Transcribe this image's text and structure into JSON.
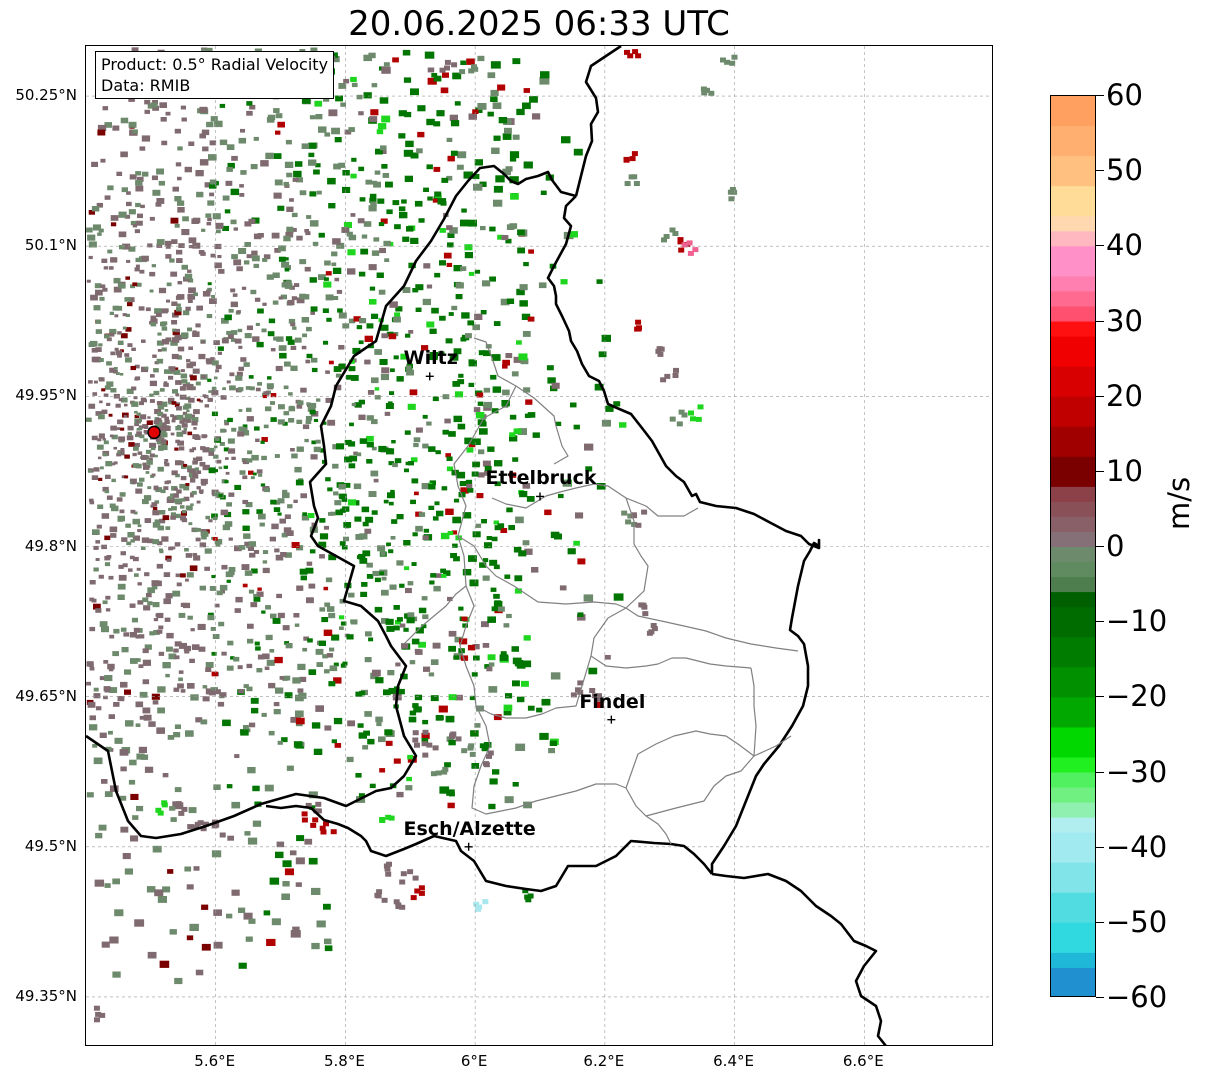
{
  "title": "20.06.2025 06:33 UTC",
  "info_box": {
    "product": "Product: 0.5° Radial Velocity",
    "source": "Data: RMIB"
  },
  "map": {
    "lon_range": [
      5.4,
      6.8
    ],
    "lat_range": [
      49.3,
      50.3
    ],
    "lat_ticks": [
      {
        "value": 50.25,
        "label": "50.25°N"
      },
      {
        "value": 50.1,
        "label": "50.1°N"
      },
      {
        "value": 49.95,
        "label": "49.95°N"
      },
      {
        "value": 49.8,
        "label": "49.8°N"
      },
      {
        "value": 49.65,
        "label": "49.65°N"
      },
      {
        "value": 49.5,
        "label": "49.5°N"
      },
      {
        "value": 49.35,
        "label": "49.35°N"
      }
    ],
    "lon_ticks": [
      {
        "value": 5.6,
        "label": "5.6°E"
      },
      {
        "value": 5.8,
        "label": "5.8°E"
      },
      {
        "value": 6.0,
        "label": "6°E"
      },
      {
        "value": 6.2,
        "label": "6.2°E"
      },
      {
        "value": 6.4,
        "label": "6.4°E"
      },
      {
        "value": 6.6,
        "label": "6.6°E"
      }
    ],
    "grid": true,
    "radar_site": {
      "lon": 5.505,
      "lat": 49.914,
      "color": "#e00000"
    },
    "cities": [
      {
        "name": "Wiltz",
        "lon": 5.93,
        "lat": 49.97
      },
      {
        "name": "Ettelbruck",
        "lon": 6.1,
        "lat": 49.85
      },
      {
        "name": "Findel",
        "lon": 6.21,
        "lat": 49.627
      },
      {
        "name": "Esch/Alzette",
        "lon": 5.99,
        "lat": 49.5
      }
    ],
    "echo_colors": {
      "near_zero_neg": "#6e8a6c",
      "near_zero_pos": "#7f6a70",
      "inbound_strong": "#007500",
      "inbound_bright": "#1ed61e",
      "outbound": "#b00000",
      "outbound_dark": "#7a0000",
      "light_cyan": "#a8e8ee",
      "pink": "#f06090"
    }
  },
  "colorbar": {
    "unit": "m/s",
    "min": -60,
    "max": 60,
    "ticks": [
      {
        "value": 60,
        "label": "60"
      },
      {
        "value": 50,
        "label": "50"
      },
      {
        "value": 40,
        "label": "40"
      },
      {
        "value": 30,
        "label": "30"
      },
      {
        "value": 20,
        "label": "20"
      },
      {
        "value": 10,
        "label": "10"
      },
      {
        "value": 0,
        "label": "0"
      },
      {
        "value": -10,
        "label": "−10"
      },
      {
        "value": -20,
        "label": "−20"
      },
      {
        "value": -30,
        "label": "−30"
      },
      {
        "value": -40,
        "label": "−40"
      },
      {
        "value": -50,
        "label": "−50"
      },
      {
        "value": -60,
        "label": "−60"
      }
    ],
    "bands": [
      {
        "from": 56,
        "to": 60,
        "color": "#ffa060"
      },
      {
        "from": 52,
        "to": 56,
        "color": "#ffb070"
      },
      {
        "from": 48,
        "to": 52,
        "color": "#ffc080"
      },
      {
        "from": 44,
        "to": 48,
        "color": "#ffdd99"
      },
      {
        "from": 42,
        "to": 44,
        "color": "#ffd8b0"
      },
      {
        "from": 40,
        "to": 42,
        "color": "#ffb8c0"
      },
      {
        "from": 36,
        "to": 40,
        "color": "#ff90c8"
      },
      {
        "from": 34,
        "to": 36,
        "color": "#ff80b0"
      },
      {
        "from": 32,
        "to": 34,
        "color": "#ff6a90"
      },
      {
        "from": 30,
        "to": 32,
        "color": "#ff5070"
      },
      {
        "from": 28,
        "to": 30,
        "color": "#ff1010"
      },
      {
        "from": 24,
        "to": 28,
        "color": "#f00000"
      },
      {
        "from": 20,
        "to": 24,
        "color": "#d80000"
      },
      {
        "from": 16,
        "to": 20,
        "color": "#c00000"
      },
      {
        "from": 12,
        "to": 16,
        "color": "#a00000"
      },
      {
        "from": 8,
        "to": 12,
        "color": "#7a0000"
      },
      {
        "from": 6,
        "to": 8,
        "color": "#8c4048"
      },
      {
        "from": 4,
        "to": 6,
        "color": "#8a5058"
      },
      {
        "from": 2,
        "to": 4,
        "color": "#8a6068"
      },
      {
        "from": 0,
        "to": 2,
        "color": "#867078"
      },
      {
        "from": -2,
        "to": 0,
        "color": "#6e8a6c"
      },
      {
        "from": -4,
        "to": -2,
        "color": "#608a60"
      },
      {
        "from": -6,
        "to": -4,
        "color": "#4e7e4e"
      },
      {
        "from": -8,
        "to": -6,
        "color": "#006000"
      },
      {
        "from": -12,
        "to": -8,
        "color": "#006c00"
      },
      {
        "from": -16,
        "to": -12,
        "color": "#007c00"
      },
      {
        "from": -20,
        "to": -16,
        "color": "#009000"
      },
      {
        "from": -24,
        "to": -20,
        "color": "#00a800"
      },
      {
        "from": -28,
        "to": -24,
        "color": "#00d800"
      },
      {
        "from": -30,
        "to": -28,
        "color": "#20f020"
      },
      {
        "from": -32,
        "to": -30,
        "color": "#50f060"
      },
      {
        "from": -34,
        "to": -32,
        "color": "#70f080"
      },
      {
        "from": -36,
        "to": -34,
        "color": "#90f0b0"
      },
      {
        "from": -38,
        "to": -36,
        "color": "#b0eef0"
      },
      {
        "from": -42,
        "to": -38,
        "color": "#a0eaf0"
      },
      {
        "from": -46,
        "to": -42,
        "color": "#80e4e8"
      },
      {
        "from": -50,
        "to": -46,
        "color": "#50dce0"
      },
      {
        "from": -54,
        "to": -50,
        "color": "#30d8e0"
      },
      {
        "from": -56,
        "to": -54,
        "color": "#20b8d8"
      },
      {
        "from": -60,
        "to": -56,
        "color": "#2090d0"
      }
    ]
  }
}
